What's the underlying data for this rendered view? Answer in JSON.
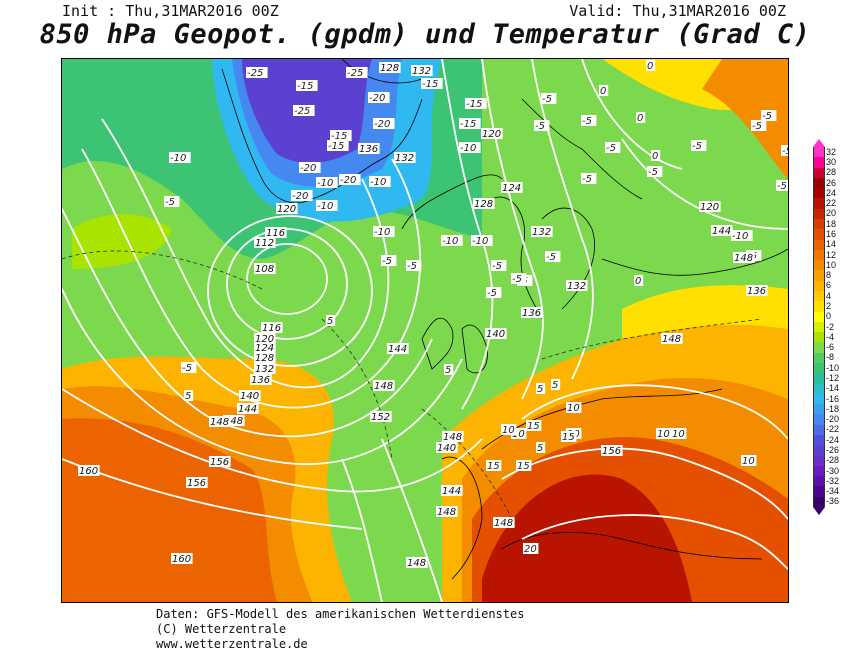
{
  "header": {
    "init": "Init : Thu,31MAR2016 00Z",
    "valid": "Valid: Thu,31MAR2016 00Z",
    "title": "850 hPa Geopot. (gpdm) und Temperatur (Grad C)"
  },
  "legend": {
    "ticks": [
      "32",
      "30",
      "28",
      "26",
      "24",
      "22",
      "20",
      "18",
      "16",
      "14",
      "12",
      "10",
      "8",
      "6",
      "4",
      "2",
      "0",
      "-2",
      "-4",
      "-6",
      "-8",
      "-10",
      "-12",
      "-14",
      "-16",
      "-18",
      "-20",
      "-22",
      "-24",
      "-26",
      "-28",
      "-30",
      "-32",
      "-34",
      "-36"
    ],
    "colors": [
      "#ff33cc",
      "#ff0099",
      "#cc0033",
      "#990000",
      "#a80000",
      "#b81400",
      "#c82800",
      "#d83c00",
      "#e45000",
      "#ec6400",
      "#f07800",
      "#f48c00",
      "#f8a000",
      "#fcb400",
      "#ffc800",
      "#ffe000",
      "#ffff00",
      "#d8f000",
      "#a8e400",
      "#7cd84c",
      "#54cc5c",
      "#3cc474",
      "#2cbca0",
      "#28c0c8",
      "#30b8f0",
      "#3ca0f0",
      "#4488f0",
      "#4c6ce8",
      "#5050d8",
      "#5c40d0",
      "#6a30c8",
      "#6a1cc0",
      "#5c10a8",
      "#4a0890",
      "#3a006a"
    ]
  },
  "map_labels": {
    "temperature": [
      "-25",
      "-25",
      "-25",
      "-20",
      "-20",
      "-15",
      "-20",
      "-10",
      "-20",
      "-15",
      "-10",
      "-15",
      "-20",
      "-10",
      "-10",
      "-15",
      "-10",
      "-5",
      "-5",
      "-10",
      "-10",
      "-15",
      "-15",
      "-10",
      "-5",
      "-5",
      "-5",
      "-5",
      "-5",
      "-5",
      "-5",
      "-5",
      "-5",
      "-5",
      "-5",
      "-5",
      "0",
      "0",
      "0",
      "0",
      "0",
      "5",
      "5",
      "5",
      "5",
      "5",
      "5",
      "10",
      "10",
      "10",
      "10",
      "10",
      "10",
      "10",
      "15",
      "15",
      "15",
      "15",
      "20",
      "-5",
      "-5",
      "-5",
      "-10",
      "-5",
      "-5",
      "-5",
      "-5"
    ],
    "geopotential": [
      "128",
      "132",
      "120",
      "136",
      "132",
      "120",
      "124",
      "128",
      "132",
      "136",
      "132",
      "140",
      "144",
      "148",
      "148",
      "152",
      "156",
      "160",
      "160",
      "156",
      "148",
      "148",
      "148",
      "116",
      "112",
      "108",
      "116",
      "120",
      "124",
      "128",
      "132",
      "136",
      "140",
      "144",
      "148",
      "148",
      "140",
      "144",
      "148",
      "120",
      "144",
      "148",
      "136",
      "156"
    ]
  },
  "footer": {
    "line1": "Daten: GFS-Modell des amerikanischen Wetterdienstes",
    "line2": "(C) Wetterzentrale",
    "line3": "www.wetterzentrale.de"
  }
}
